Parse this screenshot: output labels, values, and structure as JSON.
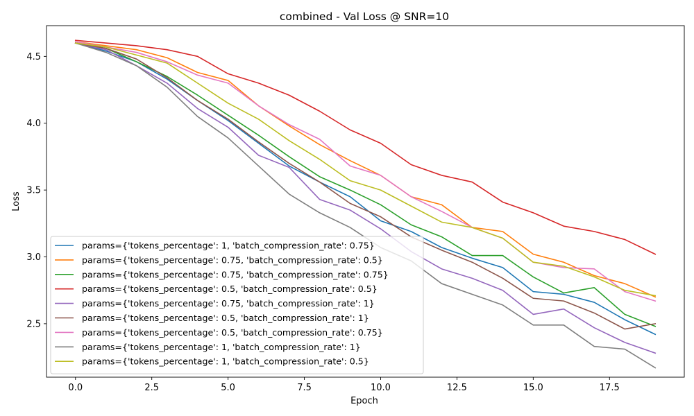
{
  "chart_data": {
    "type": "line",
    "title": "combined - Val Loss @ SNR=10",
    "xlabel": "Epoch",
    "ylabel": "Loss",
    "xlim": [
      -0.95,
      19.95
    ],
    "ylim": [
      2.1,
      4.73
    ],
    "xticks": [
      0.0,
      2.5,
      5.0,
      7.5,
      10.0,
      12.5,
      15.0,
      17.5
    ],
    "xtick_labels": [
      "0.0",
      "2.5",
      "5.0",
      "7.5",
      "10.0",
      "12.5",
      "15.0",
      "17.5"
    ],
    "yticks": [
      2.5,
      3.0,
      3.5,
      4.0,
      4.5
    ],
    "ytick_labels": [
      "2.5",
      "3.0",
      "3.5",
      "4.0",
      "4.5"
    ],
    "grid": false,
    "legend_position": "lower-left",
    "x": [
      0,
      1,
      2,
      3,
      4,
      5,
      6,
      7,
      8,
      9,
      10,
      11,
      12,
      13,
      14,
      15,
      16,
      17,
      18,
      19
    ],
    "series": [
      {
        "name": "params={'tokens_percentage': 1, 'batch_compression_rate': 0.75}",
        "color": "#1f77b4",
        "values": [
          4.6,
          4.54,
          4.46,
          4.33,
          4.17,
          4.02,
          3.85,
          3.68,
          3.56,
          3.45,
          3.27,
          3.19,
          3.07,
          2.99,
          2.92,
          2.74,
          2.72,
          2.66,
          2.53,
          2.42
        ]
      },
      {
        "name": "params={'tokens_percentage': 0.75, 'batch_compression_rate': 0.5}",
        "color": "#ff7f0e",
        "values": [
          4.61,
          4.58,
          4.55,
          4.49,
          4.38,
          4.32,
          4.13,
          3.98,
          3.84,
          3.72,
          3.61,
          3.45,
          3.39,
          3.22,
          3.19,
          3.02,
          2.96,
          2.86,
          2.8,
          2.7
        ]
      },
      {
        "name": "params={'tokens_percentage': 0.75, 'batch_compression_rate': 0.75}",
        "color": "#2ca02c",
        "values": [
          4.6,
          4.56,
          4.46,
          4.35,
          4.21,
          4.06,
          3.91,
          3.75,
          3.6,
          3.5,
          3.39,
          3.24,
          3.15,
          3.01,
          3.01,
          2.85,
          2.73,
          2.77,
          2.57,
          2.48
        ]
      },
      {
        "name": "params={'tokens_percentage': 0.5, 'batch_compression_rate': 0.5}",
        "color": "#d62728",
        "values": [
          4.62,
          4.6,
          4.58,
          4.55,
          4.5,
          4.37,
          4.3,
          4.21,
          4.09,
          3.95,
          3.85,
          3.69,
          3.61,
          3.56,
          3.41,
          3.33,
          3.23,
          3.19,
          3.13,
          3.02
        ]
      },
      {
        "name": "params={'tokens_percentage': 0.75, 'batch_compression_rate': 1}",
        "color": "#9467bd",
        "values": [
          4.6,
          4.55,
          4.43,
          4.3,
          4.11,
          3.97,
          3.76,
          3.67,
          3.43,
          3.35,
          3.21,
          3.04,
          2.91,
          2.84,
          2.75,
          2.57,
          2.61,
          2.47,
          2.36,
          2.28
        ]
      },
      {
        "name": "params={'tokens_percentage': 0.5, 'batch_compression_rate': 1}",
        "color": "#8c564b",
        "values": [
          4.6,
          4.56,
          4.48,
          4.34,
          4.17,
          4.03,
          3.86,
          3.7,
          3.56,
          3.4,
          3.3,
          3.15,
          3.05,
          2.96,
          2.84,
          2.69,
          2.67,
          2.58,
          2.46,
          2.5
        ]
      },
      {
        "name": "params={'tokens_percentage': 0.5, 'batch_compression_rate': 0.75}",
        "color": "#e377c2",
        "values": [
          4.61,
          4.57,
          4.53,
          4.46,
          4.36,
          4.3,
          4.13,
          3.99,
          3.88,
          3.68,
          3.61,
          3.45,
          3.34,
          3.22,
          3.14,
          2.96,
          2.92,
          2.91,
          2.74,
          2.67
        ]
      },
      {
        "name": "params={'tokens_percentage': 1, 'batch_compression_rate': 1}",
        "color": "#7f7f7f",
        "values": [
          4.6,
          4.53,
          4.43,
          4.27,
          4.05,
          3.89,
          3.68,
          3.47,
          3.33,
          3.22,
          3.07,
          2.97,
          2.8,
          2.72,
          2.64,
          2.49,
          2.49,
          2.33,
          2.31,
          2.17
        ]
      },
      {
        "name": "params={'tokens_percentage': 1, 'batch_compression_rate': 0.5}",
        "color": "#bcbd22",
        "values": [
          4.6,
          4.57,
          4.51,
          4.45,
          4.3,
          4.15,
          4.03,
          3.87,
          3.73,
          3.57,
          3.5,
          3.38,
          3.26,
          3.22,
          3.14,
          2.96,
          2.93,
          2.85,
          2.75,
          2.71
        ]
      }
    ]
  }
}
